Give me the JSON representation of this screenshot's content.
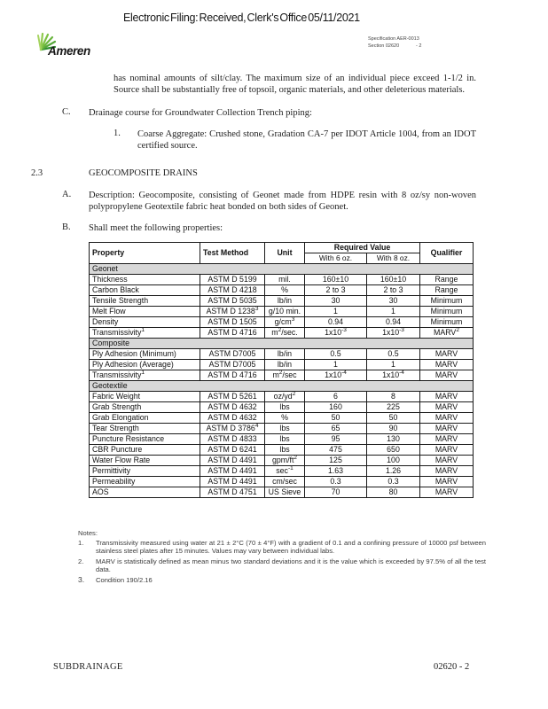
{
  "header": {
    "title": "Electronic Filing: Received, Clerk's Office 05/11/2021",
    "logo_text": "Ameren",
    "spec_line1": "Specification AER-0013",
    "spec_line2": "Section 02620",
    "spec_line2_right": "-  2"
  },
  "body": {
    "intro_continuation": "has nominal amounts of silt/clay.  The maximum size of an individual piece exceed 1-1/2 in. Source shall be substantially free of topsoil, organic materials, and other deleterious materials.",
    "item_c_label": "C.",
    "item_c_text": "Drainage course for Groundwater Collection Trench piping:",
    "item_c1_label": "1.",
    "item_c1_text": "Coarse Aggregate: Crushed stone, Gradation CA-7 per IDOT Article 1004, from an IDOT certified source.",
    "section_number": "2.3",
    "section_title": "GEOCOMPOSITE DRAINS",
    "item_a_label": "A.",
    "item_a_text": "Description:  Geocomposite, consisting of Geonet made from HDPE resin with 8 oz/sy non-woven polypropylene Geotextile fabric heat bonded on both sides of Geonet.",
    "item_b_label": "B.",
    "item_b_text": "Shall meet the following properties:"
  },
  "table": {
    "columns": [
      "Property",
      "Test Method",
      "Unit",
      "Required Value",
      "Qualifier"
    ],
    "subcolumns": [
      "With 6 oz.",
      "With 8 oz."
    ],
    "sections": [
      {
        "name": "Geonet",
        "rows": [
          [
            "Thickness",
            "ASTM D 5199",
            "mil.",
            "160±10",
            "160±10",
            "Range"
          ],
          [
            "Carbon Black",
            "ASTM D 4218",
            "%",
            "2 to 3",
            "2 to 3",
            "Range"
          ],
          [
            "Tensile Strength",
            "ASTM D 5035",
            "lb/in",
            "30",
            "30",
            "Minimum"
          ],
          [
            "Melt Flow",
            "ASTM D 1238^3",
            "g/10 min.",
            "1",
            "1",
            "Minimum"
          ],
          [
            "Density",
            "ASTM D 1505",
            "g/cm^3",
            "0.94",
            "0.94",
            "Minimum"
          ],
          [
            "Transmissivity^1",
            "ASTM D 4716",
            "m^2/sec.",
            "1x10^-3",
            "1x10^-3",
            "MARV^2"
          ]
        ]
      },
      {
        "name": "Composite",
        "rows": [
          [
            "Ply Adhesion (Minimum)",
            "ASTM D7005",
            "lb/in",
            "0.5",
            "0.5",
            "MARV"
          ],
          [
            "Ply Adhesion (Average)",
            "ASTM D7005",
            "lb/in",
            "1",
            "1",
            "MARV"
          ],
          [
            "Transmissivity^1",
            "ASTM D 4716",
            "m^2/sec",
            "1x10^-4",
            "1x10^-4",
            "MARV"
          ]
        ]
      },
      {
        "name": "Geotextile",
        "rows": [
          [
            "Fabric Weight",
            "ASTM D 5261",
            "oz/yd^2",
            "6",
            "8",
            "MARV"
          ],
          [
            "Grab Strength",
            "ASTM D 4632",
            "lbs",
            "160",
            "225",
            "MARV"
          ],
          [
            "Grab Elongation",
            "ASTM D 4632",
            "%",
            "50",
            "50",
            "MARV"
          ],
          [
            "Tear Strength",
            "ASTM D 3786^4",
            "lbs",
            "65",
            "90",
            "MARV"
          ],
          [
            "Puncture Resistance",
            "ASTM D 4833",
            "lbs",
            "95",
            "130",
            "MARV"
          ],
          [
            "CBR Puncture",
            "ASTM D 6241",
            "lbs",
            "475",
            "650",
            "MARV"
          ],
          [
            "Water Flow Rate",
            "ASTM D 4491",
            "gpm/ft^2",
            "125",
            "100",
            "MARV"
          ],
          [
            "Permittivity",
            "ASTM D 4491",
            "sec^-1",
            "1.63",
            "1.26",
            "MARV"
          ],
          [
            "Permeability",
            "ASTM D 4491",
            "cm/sec",
            "0.3",
            "0.3",
            "MARV"
          ],
          [
            "AOS",
            "ASTM D 4751",
            "US Sieve",
            "70",
            "80",
            "MARV"
          ]
        ]
      }
    ]
  },
  "notes": {
    "heading": "Notes:",
    "items": [
      {
        "num": "1.",
        "text": "Transmissivity measured using water at 21 ± 2°C (70 ± 4°F) with a gradient of 0.1 and a confining pressure of 10000 psf between stainless steel plates after 15 minutes. Values may vary between individual labs."
      },
      {
        "num": "2.",
        "text": "MARV is statistically defined as mean minus two standard deviations and it is the value which is exceeded by 97.5% of all the test data."
      },
      {
        "num": "3.",
        "text": "Condition 190/2.16"
      }
    ]
  },
  "footer": {
    "left": "SUBDRAINAGE",
    "right": "02620 - 2"
  }
}
